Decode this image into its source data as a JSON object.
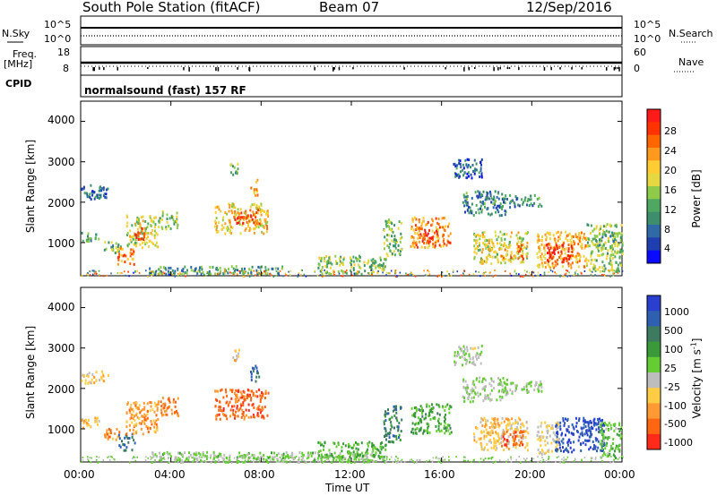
{
  "header": {
    "station": "South Pole Station (fitACF)",
    "beam": "Beam 07",
    "date": "12/Sep/2016"
  },
  "status": {
    "nsky_label": "N.Sky",
    "nsky_ticks": [
      "10^5",
      "10^0"
    ],
    "nsearch_label": "N.Search",
    "nsearch_ticks": [
      "10^5",
      "10^0"
    ],
    "freq_label": "Freq.",
    "freq_unit": "[MHz]",
    "freq_ticks": [
      "18",
      "8"
    ],
    "nave_label": "Nave",
    "nave_ticks": [
      "60",
      "0"
    ],
    "cpid_label": "CPID",
    "program": "normalsound (fast) 157 RF"
  },
  "x_axis": {
    "label": "Time UT",
    "ticks": [
      "00:00",
      "04:00",
      "08:00",
      "12:00",
      "16:00",
      "20:00",
      "00:00"
    ]
  },
  "y_axis": {
    "label": "Slant Range [km]",
    "ticks": [
      "4000",
      "3000",
      "2000",
      "1000"
    ]
  },
  "power_colorbar": {
    "label": "Power [dB]",
    "ticks": [
      "28",
      "24",
      "20",
      "16",
      "12",
      "8",
      "4"
    ],
    "colors": [
      "#ff1a1a",
      "#ff3300",
      "#ff6600",
      "#ff9a1f",
      "#ffcc33",
      "#e6d840",
      "#8fcb48",
      "#4fa861",
      "#3d8e6c",
      "#2f6aa6",
      "#1f3fb0",
      "#0a0aff"
    ]
  },
  "velocity_colorbar": {
    "label": "Velocity [m s",
    "label_sup": "-1",
    "label_tail": "]",
    "ticks": [
      "1000",
      "500",
      "100",
      "25",
      "-25",
      "-100",
      "-500",
      "-1000"
    ],
    "colors": [
      "#2a3fd0",
      "#2e5fb0",
      "#3d7a5f",
      "#3a9a3a",
      "#66cc33",
      "#bdbdbd",
      "#ffcc44",
      "#ff9933",
      "#ff6611",
      "#ff2a1a"
    ]
  },
  "chart_data": {
    "type": "heatmap",
    "x_range_hours": [
      0,
      24
    ],
    "y_range_km": [
      180,
      4500
    ],
    "panels": [
      {
        "name": "Power",
        "unit": "dB",
        "clim": [
          0,
          30
        ],
        "patches": [
          {
            "t": [
              0.0,
              1.2
            ],
            "r": [
              2100,
              2450
            ],
            "v": 7
          },
          {
            "t": [
              0.0,
              0.8
            ],
            "r": [
              1050,
              1300
            ],
            "v": 10
          },
          {
            "t": [
              1.0,
              1.8
            ],
            "r": [
              750,
              1050
            ],
            "v": 12
          },
          {
            "t": [
              1.6,
              2.4
            ],
            "r": [
              480,
              900
            ],
            "v": 22
          },
          {
            "t": [
              2.0,
              3.4
            ],
            "r": [
              900,
              1700
            ],
            "v": 16
          },
          {
            "t": [
              2.4,
              3.0
            ],
            "r": [
              1100,
              1400
            ],
            "v": 24
          },
          {
            "t": [
              3.4,
              4.3
            ],
            "r": [
              1350,
              1800
            ],
            "v": 14
          },
          {
            "t": [
              5.9,
              8.3
            ],
            "r": [
              1250,
              2000
            ],
            "v": 18
          },
          {
            "t": [
              6.8,
              7.9
            ],
            "r": [
              1450,
              1850
            ],
            "v": 26
          },
          {
            "t": [
              6.6,
              7.0
            ],
            "r": [
              2700,
              3000
            ],
            "v": 12
          },
          {
            "t": [
              7.5,
              7.9
            ],
            "r": [
              2200,
              2600
            ],
            "v": 20
          },
          {
            "t": [
              3.0,
              9.0
            ],
            "r": [
              250,
              450
            ],
            "v": 10
          },
          {
            "t": [
              10.5,
              13.5
            ],
            "r": [
              250,
              700
            ],
            "v": 14
          },
          {
            "t": [
              13.4,
              14.2
            ],
            "r": [
              700,
              1600
            ],
            "v": 12
          },
          {
            "t": [
              14.6,
              16.4
            ],
            "r": [
              900,
              1650
            ],
            "v": 22
          },
          {
            "t": [
              15.0,
              15.8
            ],
            "r": [
              1000,
              1350
            ],
            "v": 28
          },
          {
            "t": [
              16.9,
              18.9
            ],
            "r": [
              1700,
              2300
            ],
            "v": 8
          },
          {
            "t": [
              16.5,
              17.8
            ],
            "r": [
              2600,
              3100
            ],
            "v": 6
          },
          {
            "t": [
              18.5,
              20.4
            ],
            "r": [
              1900,
              2200
            ],
            "v": 8
          },
          {
            "t": [
              17.4,
              19.8
            ],
            "r": [
              500,
              1300
            ],
            "v": 16
          },
          {
            "t": [
              18.6,
              19.6
            ],
            "r": [
              600,
              1000
            ],
            "v": 22
          },
          {
            "t": [
              20.2,
              22.4
            ],
            "r": [
              400,
              1300
            ],
            "v": 20
          },
          {
            "t": [
              20.6,
              21.8
            ],
            "r": [
              500,
              1000
            ],
            "v": 28
          },
          {
            "t": [
              22.4,
              24.0
            ],
            "r": [
              300,
              1500
            ],
            "v": 14
          },
          {
            "t": [
              22.8,
              23.6
            ],
            "r": [
              900,
              1300
            ],
            "v": 10
          }
        ]
      },
      {
        "name": "Velocity",
        "unit": "m s^-1",
        "clim": [
          -1000,
          1000
        ],
        "patches": [
          {
            "t": [
              0.0,
              1.2
            ],
            "r": [
              2150,
              2450
            ],
            "v": -300
          },
          {
            "t": [
              0.0,
              0.8
            ],
            "r": [
              1050,
              1300
            ],
            "v": -300
          },
          {
            "t": [
              1.0,
              1.8
            ],
            "r": [
              750,
              1050
            ],
            "v": -500
          },
          {
            "t": [
              1.6,
              2.4
            ],
            "r": [
              480,
              900
            ],
            "v": 600
          },
          {
            "t": [
              2.0,
              3.4
            ],
            "r": [
              900,
              1700
            ],
            "v": -500
          },
          {
            "t": [
              3.4,
              4.3
            ],
            "r": [
              1350,
              1800
            ],
            "v": -600
          },
          {
            "t": [
              5.9,
              8.3
            ],
            "r": [
              1250,
              2000
            ],
            "v": -700
          },
          {
            "t": [
              6.6,
              7.0
            ],
            "r": [
              2700,
              3000
            ],
            "v": -300
          },
          {
            "t": [
              7.5,
              7.9
            ],
            "r": [
              2200,
              2600
            ],
            "v": 600
          },
          {
            "t": [
              3.0,
              13.5
            ],
            "r": [
              200,
              450
            ],
            "v": 40
          },
          {
            "t": [
              10.5,
              13.5
            ],
            "r": [
              300,
              700
            ],
            "v": 200
          },
          {
            "t": [
              13.4,
              14.2
            ],
            "r": [
              700,
              1600
            ],
            "v": 500
          },
          {
            "t": [
              14.6,
              16.4
            ],
            "r": [
              900,
              1650
            ],
            "v": 250
          },
          {
            "t": [
              16.9,
              18.9
            ],
            "r": [
              1700,
              2300
            ],
            "v": 0
          },
          {
            "t": [
              16.5,
              17.8
            ],
            "r": [
              2600,
              3100
            ],
            "v": -30
          },
          {
            "t": [
              18.5,
              20.4
            ],
            "r": [
              1900,
              2200
            ],
            "v": 0
          },
          {
            "t": [
              17.4,
              19.8
            ],
            "r": [
              500,
              1300
            ],
            "v": -300
          },
          {
            "t": [
              18.6,
              19.6
            ],
            "r": [
              600,
              1000
            ],
            "v": -700
          },
          {
            "t": [
              20.2,
              21.2
            ],
            "r": [
              400,
              1200
            ],
            "v": -200
          },
          {
            "t": [
              21.0,
              23.2
            ],
            "r": [
              450,
              1300
            ],
            "v": 800
          },
          {
            "t": [
              23.0,
              24.0
            ],
            "r": [
              300,
              1200
            ],
            "v": 150
          }
        ]
      }
    ]
  }
}
